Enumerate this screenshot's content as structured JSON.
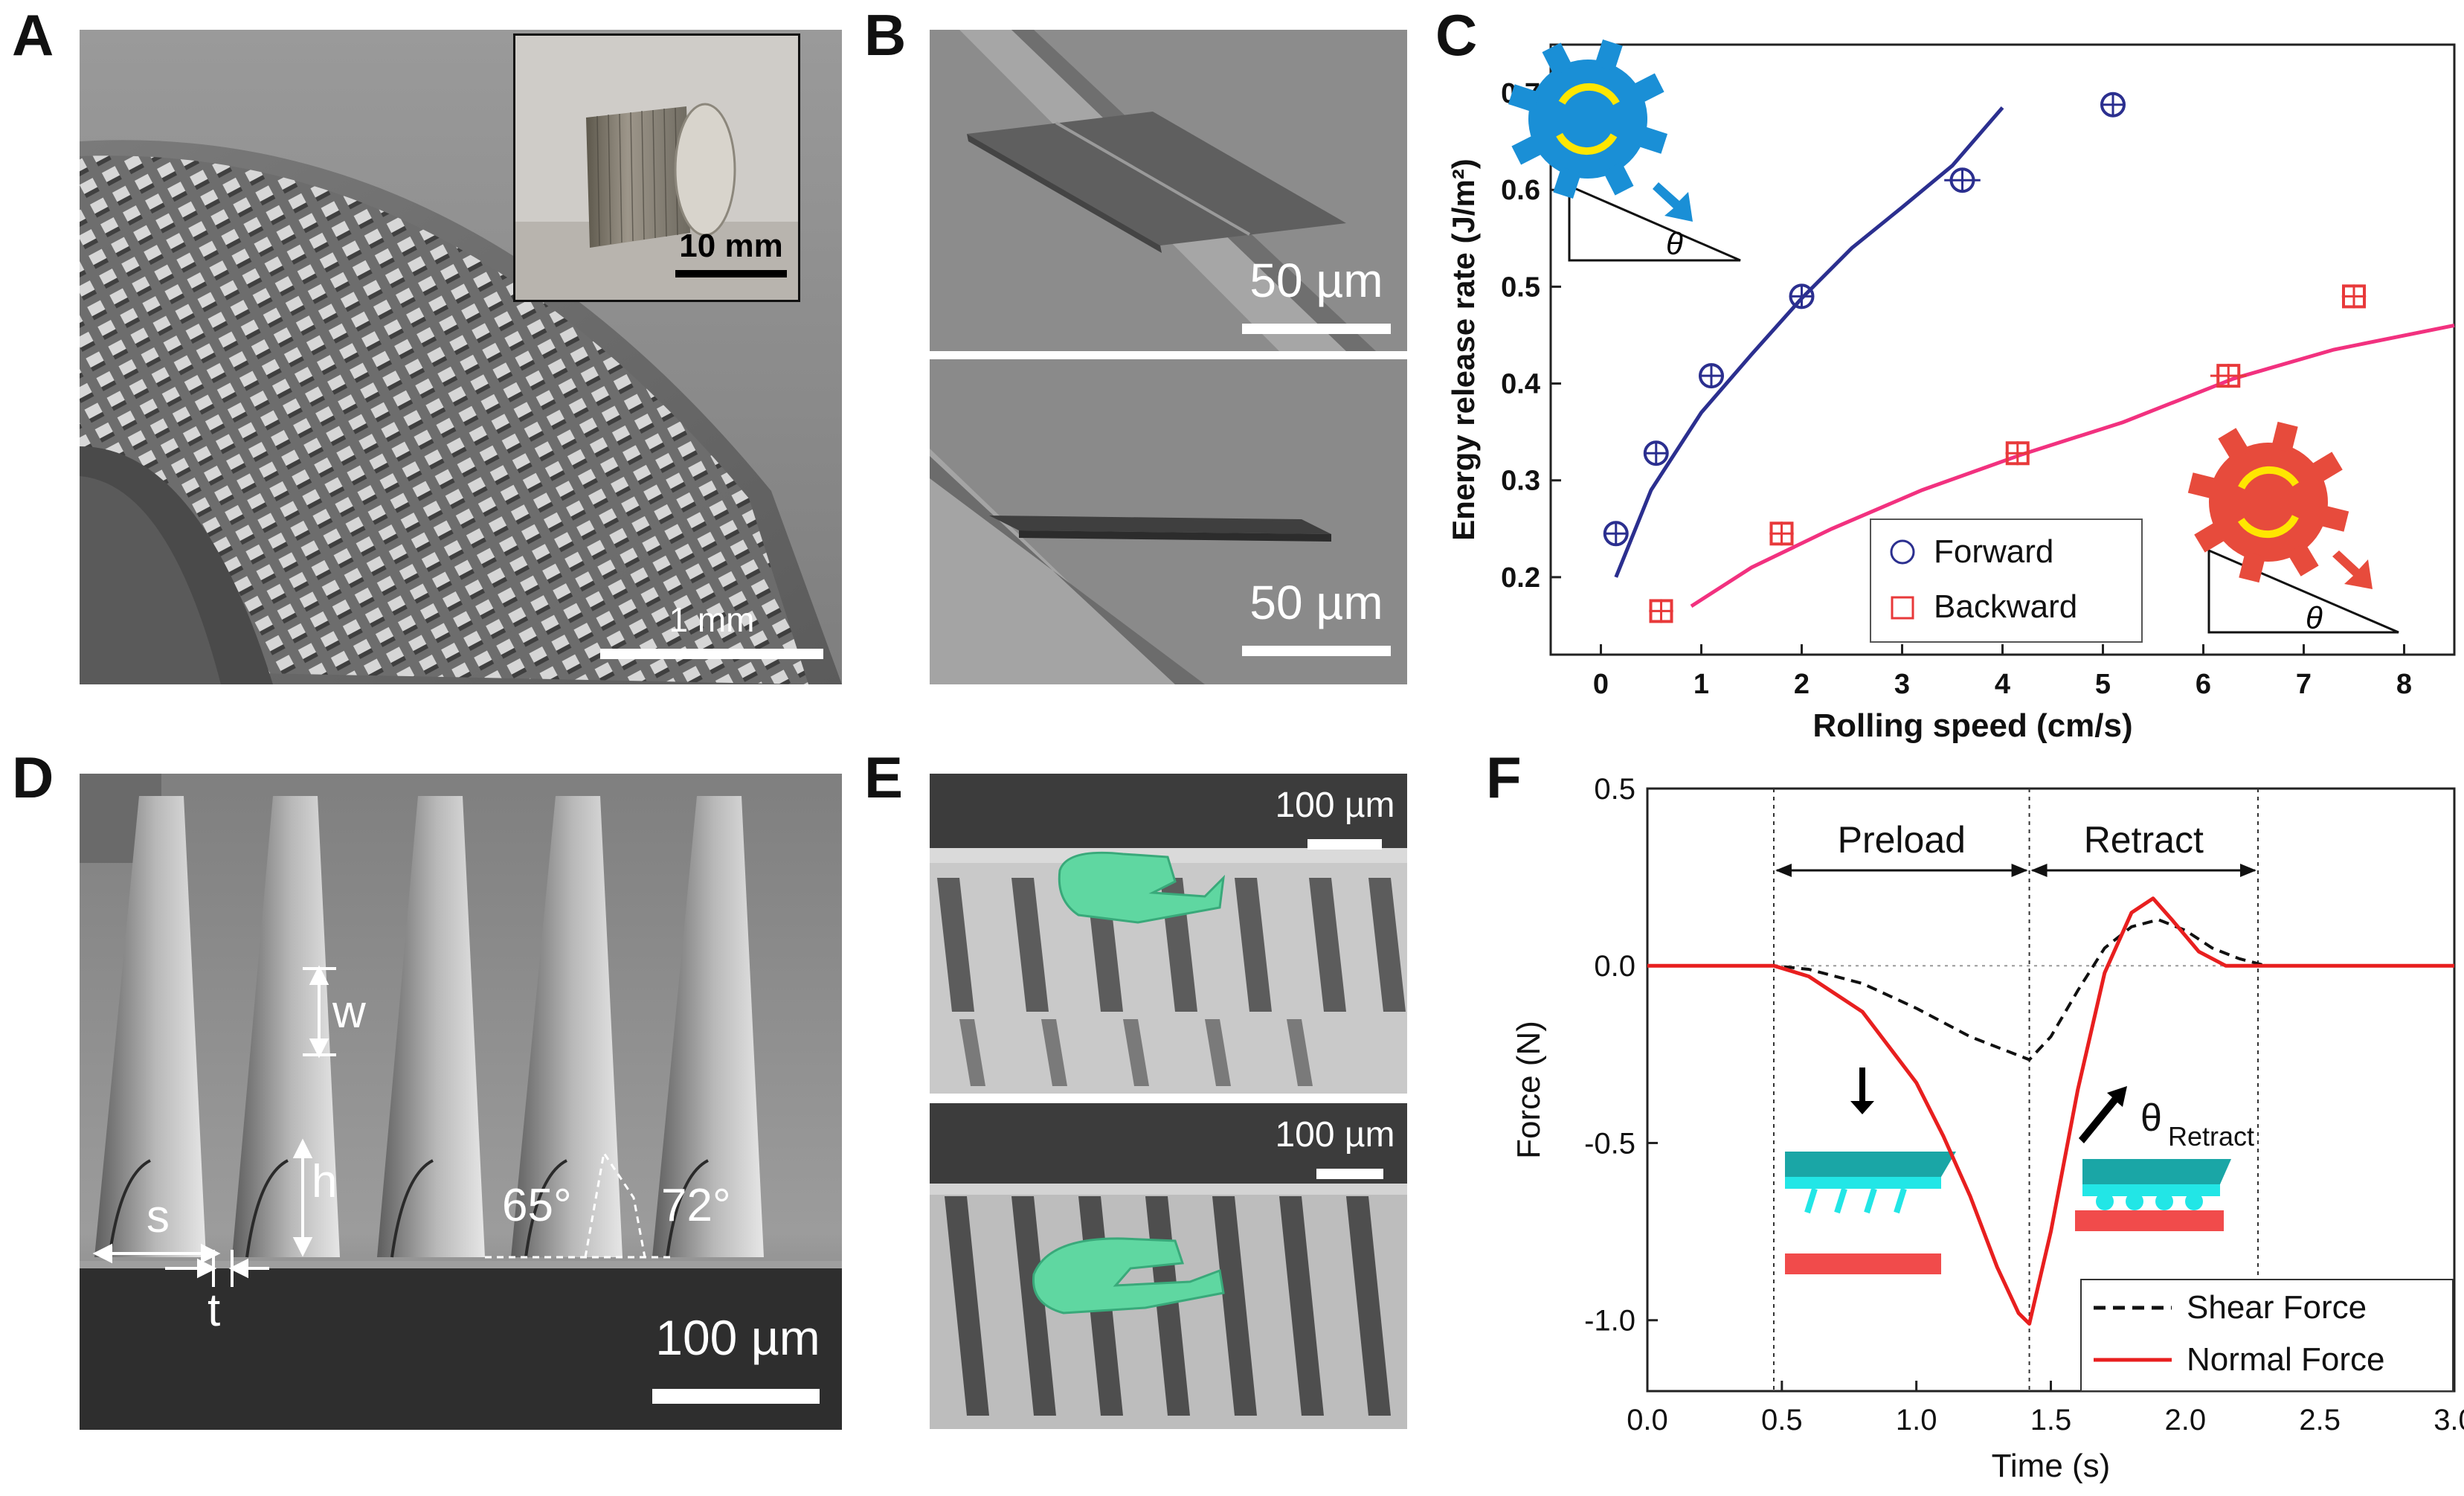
{
  "figure": {
    "panel_letters": [
      "A",
      "B",
      "C",
      "D",
      "E",
      "F"
    ]
  },
  "panel_a": {
    "scale_bar": "1 mm",
    "inset_scale_bar": "10 mm"
  },
  "panel_b": {
    "scale_bar_top": "50 µm",
    "scale_bar_bottom": "50 µm"
  },
  "panel_c": {
    "chart_data": {
      "type": "scatter",
      "xlabel": "Rolling speed (cm/s)",
      "ylabel": "Energy release rate (J/m²)",
      "xlim": [
        -0.5,
        8.5
      ],
      "ylim": [
        0.12,
        0.75
      ],
      "x_ticks": [
        "0",
        "1",
        "2",
        "3",
        "4",
        "5",
        "6",
        "7",
        "8"
      ],
      "y_ticks": [
        "0.2",
        "0.3",
        "0.4",
        "0.5",
        "0.6",
        "0.7"
      ],
      "legend_position": "bottom-center",
      "series": [
        {
          "name": "Forward",
          "marker": "circle",
          "color": "#2b2f8f",
          "points": [
            [
              0.15,
              0.245
            ],
            [
              0.55,
              0.328
            ],
            [
              1.1,
              0.408
            ],
            [
              2.0,
              0.49
            ],
            [
              3.6,
              0.61
            ],
            [
              5.1,
              0.688
            ]
          ],
          "xerr": [
            0.12,
            0.1,
            0.12,
            0.12,
            0.18,
            0.1
          ],
          "fit": [
            [
              0.15,
              0.2
            ],
            [
              0.5,
              0.29
            ],
            [
              1.0,
              0.37
            ],
            [
              1.5,
              0.43
            ],
            [
              2.0,
              0.488
            ],
            [
              2.5,
              0.54
            ],
            [
              3.0,
              0.582
            ],
            [
              3.5,
              0.625
            ],
            [
              4.0,
              0.685
            ]
          ]
        },
        {
          "name": "Backward",
          "marker": "square",
          "color": "#e8393a",
          "fit_color": "#f2317f",
          "points": [
            [
              0.6,
              0.165
            ],
            [
              1.8,
              0.245
            ],
            [
              4.15,
              0.328
            ],
            [
              6.25,
              0.408
            ],
            [
              7.5,
              0.49
            ]
          ],
          "xerr": [
            0.12,
            0.12,
            0.12,
            0.18,
            0.12
          ],
          "fit": [
            [
              0.9,
              0.17
            ],
            [
              1.5,
              0.21
            ],
            [
              2.3,
              0.25
            ],
            [
              3.2,
              0.29
            ],
            [
              4.2,
              0.327
            ],
            [
              5.2,
              0.36
            ],
            [
              6.3,
              0.405
            ],
            [
              7.3,
              0.435
            ],
            [
              8.5,
              0.46
            ]
          ]
        }
      ],
      "inset_angle_label": "θ"
    }
  },
  "panel_d": {
    "labels": {
      "w": "w",
      "h": "h",
      "s": "s",
      "t": "t",
      "angle_left": "65°",
      "angle_right": "72°"
    },
    "scale_bar": "100 µm"
  },
  "panel_e": {
    "scale_bar_top": "100 µm",
    "scale_bar_bottom": "100 µm"
  },
  "panel_f": {
    "chart_data": {
      "type": "line",
      "xlabel": "Time (s)",
      "ylabel": "Force (N)",
      "xlim": [
        0.0,
        3.0
      ],
      "ylim": [
        -1.2,
        0.5
      ],
      "x_ticks": [
        "0.0",
        "0.5",
        "1.0",
        "1.5",
        "2.0",
        "2.5",
        "3.0"
      ],
      "y_ticks": [
        "0.5",
        "0.0",
        "-0.5",
        "-1.0"
      ],
      "legend_position": "bottom-right",
      "phase_lines": [
        0.47,
        1.42,
        2.27
      ],
      "phases": [
        "Preload",
        "Retract"
      ],
      "annotation": "θ",
      "annotation_sub": "Retract",
      "series": [
        {
          "name": "Shear Force",
          "style": "dashed",
          "color": "#111111",
          "x": [
            0.0,
            0.47,
            0.6,
            0.8,
            1.0,
            1.2,
            1.42,
            1.5,
            1.6,
            1.7,
            1.8,
            1.9,
            2.0,
            2.1,
            2.2,
            2.3,
            2.5,
            3.0
          ],
          "y": [
            0.0,
            0.0,
            -0.01,
            -0.05,
            -0.12,
            -0.2,
            -0.265,
            -0.2,
            -0.07,
            0.05,
            0.11,
            0.13,
            0.1,
            0.05,
            0.02,
            0.0,
            0.0,
            0.0
          ]
        },
        {
          "name": "Normal Force",
          "style": "solid",
          "color": "#e81f1f",
          "x": [
            0.0,
            0.47,
            0.6,
            0.8,
            1.0,
            1.1,
            1.2,
            1.3,
            1.38,
            1.42,
            1.5,
            1.6,
            1.7,
            1.8,
            1.88,
            1.95,
            2.05,
            2.15,
            2.3,
            2.5,
            3.0
          ],
          "y": [
            0.0,
            0.0,
            -0.03,
            -0.13,
            -0.33,
            -0.48,
            -0.65,
            -0.85,
            -0.98,
            -1.01,
            -0.75,
            -0.35,
            -0.02,
            0.15,
            0.19,
            0.13,
            0.04,
            0.0,
            0.0,
            0.0,
            0.0
          ]
        }
      ]
    }
  }
}
